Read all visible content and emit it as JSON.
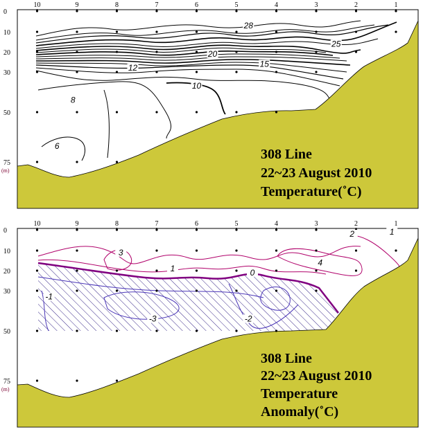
{
  "chart_data": [
    {
      "type": "contour",
      "panel": "top",
      "caption_lines": [
        "308 Line",
        "22~23 August 2010",
        "Temperature(˚C)"
      ],
      "stations": [
        "10",
        "9",
        "8",
        "7",
        "6",
        "5",
        "4",
        "3",
        "2",
        "1"
      ],
      "depth_ticks": [
        "0",
        "10",
        "20",
        "30",
        "50",
        "75"
      ],
      "depth_unit": "(m)",
      "sample_depths": [
        10,
        20,
        30,
        50,
        75
      ],
      "contour_labels": [
        {
          "text": "28",
          "station": 4.7,
          "depth": 8
        },
        {
          "text": "25",
          "station": 2.5,
          "depth": 17
        },
        {
          "text": "20",
          "station": 5.6,
          "depth": 22
        },
        {
          "text": "15",
          "station": 4.3,
          "depth": 27
        },
        {
          "text": "12",
          "station": 7.6,
          "depth": 29
        },
        {
          "text": "10",
          "station": 6.0,
          "depth": 38
        },
        {
          "text": "8",
          "station": 9.1,
          "depth": 45
        },
        {
          "text": "6",
          "station": 9.5,
          "depth": 68
        }
      ],
      "colors": {
        "land": "#cdc83a",
        "contour": "#000000"
      }
    },
    {
      "type": "contour",
      "panel": "bottom",
      "caption_lines": [
        "308 Line",
        "22~23 August 2010",
        "Temperature",
        "Anomaly(˚C)"
      ],
      "stations": [
        "10",
        "9",
        "8",
        "7",
        "6",
        "5",
        "4",
        "3",
        "2",
        "1"
      ],
      "depth_ticks": [
        "0",
        "10",
        "20",
        "30",
        "50",
        "75"
      ],
      "depth_unit": "(m)",
      "sample_depths": [
        10,
        20,
        30,
        50,
        75
      ],
      "contour_labels": [
        {
          "text": "3",
          "station": 7.9,
          "depth": 12
        },
        {
          "text": "4",
          "station": 2.9,
          "depth": 17
        },
        {
          "text": "2",
          "station": 2.1,
          "depth": 3
        },
        {
          "text": "1",
          "station": 1.1,
          "depth": 2
        },
        {
          "text": "1",
          "station": 6.6,
          "depth": 20
        },
        {
          "text": "0",
          "station": 4.6,
          "depth": 22
        },
        {
          "text": "-1",
          "station": 9.7,
          "depth": 34
        },
        {
          "text": "-3",
          "station": 7.1,
          "depth": 45
        },
        {
          "text": "-2",
          "station": 4.7,
          "depth": 45
        }
      ],
      "colors": {
        "land": "#cdc83a",
        "positive": "#b0006a",
        "zero": "#800080",
        "negative": "#4b36b8",
        "hatch": "#3a2a8a"
      }
    }
  ]
}
